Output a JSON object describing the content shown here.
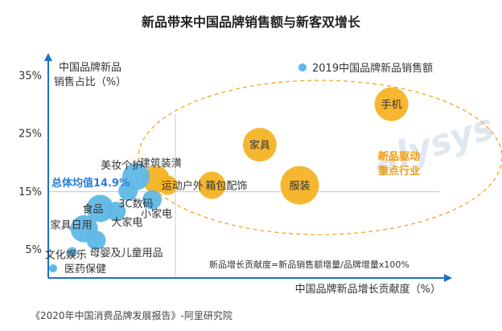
{
  "chart_data": {
    "type": "scatter",
    "title": "新品带来中国品牌销售额与新客双增长",
    "ylabel_line1": "中国品牌新品",
    "ylabel_line2": "销售占比（%）",
    "xlabel": "中国品牌新品增长贡献度（%）",
    "y_ticks": [
      "35%",
      "25%",
      "15%",
      "5%"
    ],
    "y_tick_values": [
      35,
      25,
      15,
      5
    ],
    "ylim": [
      0,
      38
    ],
    "avg_value": 14.9,
    "avg_label": "总体均值14.9%",
    "legend": [
      {
        "label": "2019中国品牌新品销售额",
        "color": "#5fb8e6"
      },
      {
        "label": "医药保健",
        "color": "#5fb8e6"
      }
    ],
    "formula_note": "新品增长贡献度=新品销售额增量/品牌增量x100%",
    "focus_label_line1": "新品驱动",
    "focus_label_line2": "重点行业",
    "source": "《2020年中国消费品牌发展报告》-阿里研究院",
    "points": [
      {
        "name": "手机",
        "x": 86,
        "y": 30,
        "size": 3,
        "group": "focus"
      },
      {
        "name": "家具",
        "x": 53,
        "y": 23,
        "size": 3,
        "group": "focus"
      },
      {
        "name": "服装",
        "x": 63,
        "y": 16,
        "size": 4,
        "group": "focus"
      },
      {
        "name": "箱包配饰",
        "x": 41,
        "y": 16,
        "size": 2,
        "group": "focus"
      },
      {
        "name": "运动户外",
        "x": 30,
        "y": 16,
        "size": 1,
        "group": "focus"
      },
      {
        "name": "建筑装潢",
        "x": 27,
        "y": 17,
        "size": 2,
        "group": "focus"
      },
      {
        "name": "美妆个护",
        "x": 22,
        "y": 17.5,
        "size": 2,
        "group": "other"
      },
      {
        "name": "3C数码",
        "x": 20,
        "y": 15,
        "size": 1,
        "group": "other"
      },
      {
        "name": "小家电",
        "x": 26,
        "y": 13.5,
        "size": 1,
        "group": "other"
      },
      {
        "name": "食品",
        "x": 13,
        "y": 12,
        "size": 2,
        "group": "other"
      },
      {
        "name": "大家电",
        "x": 17,
        "y": 11.5,
        "size": 1,
        "group": "other"
      },
      {
        "name": "家具日用",
        "x": 9,
        "y": 8.5,
        "size": 2,
        "group": "other"
      },
      {
        "name": "母婴及儿童用品",
        "x": 12,
        "y": 6.5,
        "size": 1,
        "group": "other"
      },
      {
        "name": "文化娱乐",
        "x": 6,
        "y": 4.5,
        "size": 0,
        "group": "other"
      }
    ]
  }
}
